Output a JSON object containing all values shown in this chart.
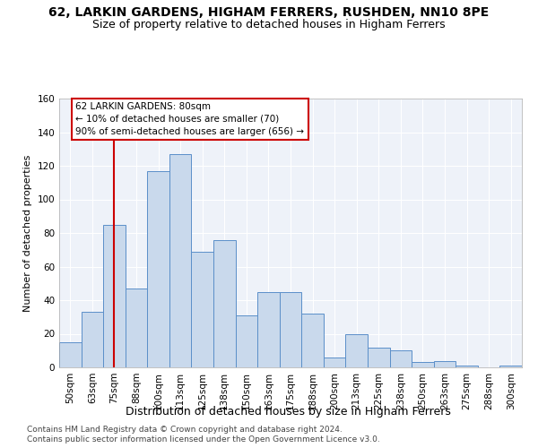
{
  "title1": "62, LARKIN GARDENS, HIGHAM FERRERS, RUSHDEN, NN10 8PE",
  "title2": "Size of property relative to detached houses in Higham Ferrers",
  "xlabel": "Distribution of detached houses by size in Higham Ferrers",
  "ylabel": "Number of detached properties",
  "bar_labels": [
    "50sqm",
    "63sqm",
    "75sqm",
    "88sqm",
    "100sqm",
    "113sqm",
    "125sqm",
    "138sqm",
    "150sqm",
    "163sqm",
    "175sqm",
    "188sqm",
    "200sqm",
    "213sqm",
    "225sqm",
    "238sqm",
    "250sqm",
    "263sqm",
    "275sqm",
    "288sqm",
    "300sqm"
  ],
  "bar_values": [
    15,
    33,
    85,
    47,
    117,
    127,
    69,
    76,
    31,
    45,
    45,
    32,
    6,
    20,
    12,
    10,
    3,
    4,
    1,
    0,
    1
  ],
  "bar_color": "#c9d9ec",
  "bar_edge_color": "#5b8fc9",
  "vline_x": 2.0,
  "vline_color": "#cc0000",
  "annotation_box_text": "62 LARKIN GARDENS: 80sqm\n← 10% of detached houses are smaller (70)\n90% of semi-detached houses are larger (656) →",
  "box_edge_color": "#cc0000",
  "ylim": [
    0,
    160
  ],
  "yticks": [
    0,
    20,
    40,
    60,
    80,
    100,
    120,
    140,
    160
  ],
  "footer1": "Contains HM Land Registry data © Crown copyright and database right 2024.",
  "footer2": "Contains public sector information licensed under the Open Government Licence v3.0.",
  "bg_color": "#eef2f9",
  "grid_color": "#ffffff",
  "title1_fontsize": 10,
  "title2_fontsize": 9,
  "xlabel_fontsize": 9,
  "ylabel_fontsize": 8,
  "tick_fontsize": 7.5,
  "annot_fontsize": 7.5,
  "footer_fontsize": 6.5
}
